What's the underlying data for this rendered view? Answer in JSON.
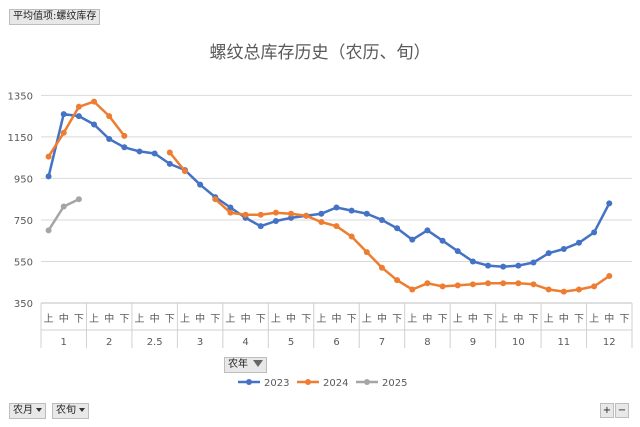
{
  "header": {
    "field_button": "平均值项:螺纹库存"
  },
  "filters": {
    "year_label": "农年",
    "month_label": "农月",
    "period_label": "农旬",
    "expand_label": "+",
    "collapse_label": "−"
  },
  "colors": {
    "2023": "#4472C4",
    "2024": "#ED7D31",
    "2025": "#A5A5A5",
    "grid": "#d9d9d9"
  },
  "chart_data": {
    "type": "line",
    "title": "螺纹总库存历史（农历、旬）",
    "ylim": [
      350,
      1400
    ],
    "yticks": [
      350,
      550,
      750,
      950,
      1150,
      1350
    ],
    "categories_outer": [
      "1",
      "2",
      "2.5",
      "3",
      "4",
      "5",
      "6",
      "7",
      "8",
      "9",
      "10",
      "11",
      "12"
    ],
    "categories_inner": [
      "上",
      "中",
      "下"
    ],
    "series": [
      {
        "name": "2023",
        "values": [
          960,
          1260,
          1250,
          1210,
          1140,
          1100,
          1080,
          1070,
          1020,
          990,
          920,
          860,
          810,
          760,
          720,
          745,
          760,
          770,
          780,
          810,
          795,
          780,
          750,
          710,
          655,
          700,
          650,
          600,
          550,
          530,
          525,
          530,
          545,
          590,
          610,
          640,
          690,
          830
        ]
      },
      {
        "name": "2024",
        "values": [
          1055,
          1170,
          1295,
          1320,
          1250,
          1155,
          null,
          null,
          1075,
          985,
          null,
          850,
          785,
          775,
          775,
          785,
          780,
          770,
          740,
          720,
          670,
          595,
          520,
          460,
          415,
          445,
          430,
          435,
          440,
          445,
          445,
          445,
          440,
          415,
          405,
          415,
          430,
          480
        ]
      },
      {
        "name": "2025",
        "values": [
          700,
          815,
          850
        ]
      }
    ]
  }
}
